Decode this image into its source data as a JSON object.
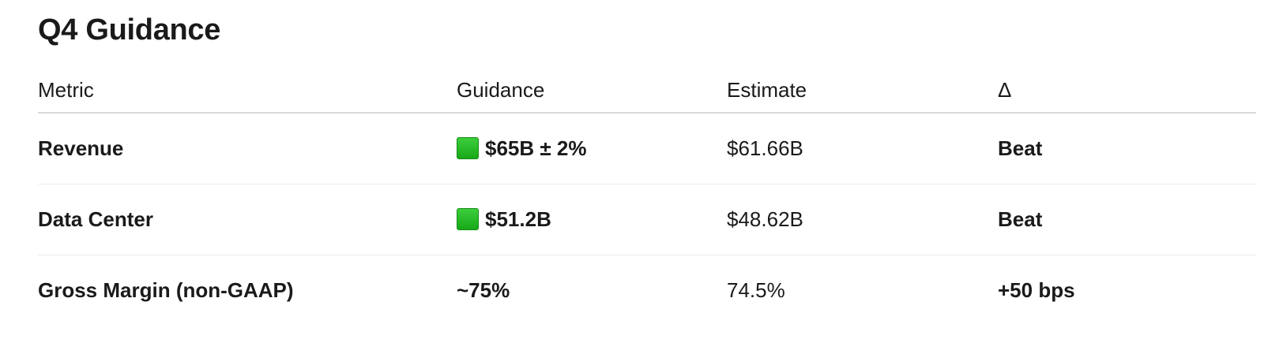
{
  "title": "Q4 Guidance",
  "table": {
    "headers": [
      "Metric",
      "Guidance",
      "Estimate",
      "Δ"
    ],
    "rows": [
      {
        "metric": "Revenue",
        "guidance_icon": "green-square-icon",
        "guidance": "$65B ± 2%",
        "estimate": "$61.66B",
        "delta": "Beat"
      },
      {
        "metric": "Data Center",
        "guidance_icon": "green-square-icon",
        "guidance": "$51.2B",
        "estimate": "$48.62B",
        "delta": "Beat"
      },
      {
        "metric": "Gross Margin (non-GAAP)",
        "guidance": "~75%",
        "estimate": "74.5%",
        "delta": "+50 bps"
      }
    ]
  },
  "colors": {
    "green_square": "#22b322",
    "header_rule": "#d9d9d9",
    "row_rule": "#ececec"
  }
}
